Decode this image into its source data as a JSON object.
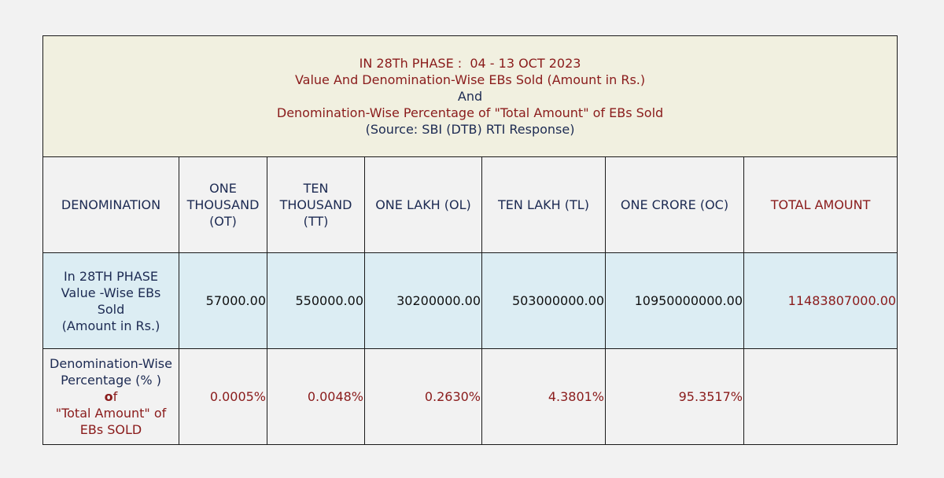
{
  "header": {
    "line1_prefix": "IN 28Th PHASE :",
    "line1_dates": "04 - 13 OCT 2023",
    "line2": "Value And Denomination-Wise  EBs Sold  (Amount in Rs.)",
    "line3": "And",
    "line4": "Denomination-Wise  Percentage of \"Total Amount\" of EBs Sold",
    "line5": "(Source: SBI (DTB) RTI Response)"
  },
  "columns": {
    "denomination": "DENOMINATION",
    "ot": [
      "ONE",
      "THOUSAND",
      "(OT)"
    ],
    "tt": [
      "TEN",
      "THOUSAND",
      "(TT)"
    ],
    "ol": "ONE LAKH  (OL)",
    "tl": "TEN LAKH  (TL)",
    "oc": "ONE CRORE  (OC)",
    "total": "TOTAL AMOUNT"
  },
  "value_row": {
    "label": [
      "In 28TH PHASE",
      "Value -Wise  EBs",
      "Sold",
      "(Amount in Rs.)"
    ],
    "ot": "57000.00",
    "tt": "550000.00",
    "ol": "30200000.00",
    "tl": "503000000.00",
    "oc": "10950000000.00",
    "total": "11483807000.00"
  },
  "percent_row": {
    "label_line1": "Denomination-Wise",
    "label_line2": "Percentage (% )",
    "label_line3_bold": "o",
    "label_line3_rest": "f",
    "label_line4": "\"Total Amount\" of",
    "label_line5": "EBs SOLD",
    "ot": "0.0005%",
    "tt": "0.0048%",
    "ol": "0.2630%",
    "tl": "4.3801%",
    "oc": "95.3517%",
    "total": ""
  }
}
